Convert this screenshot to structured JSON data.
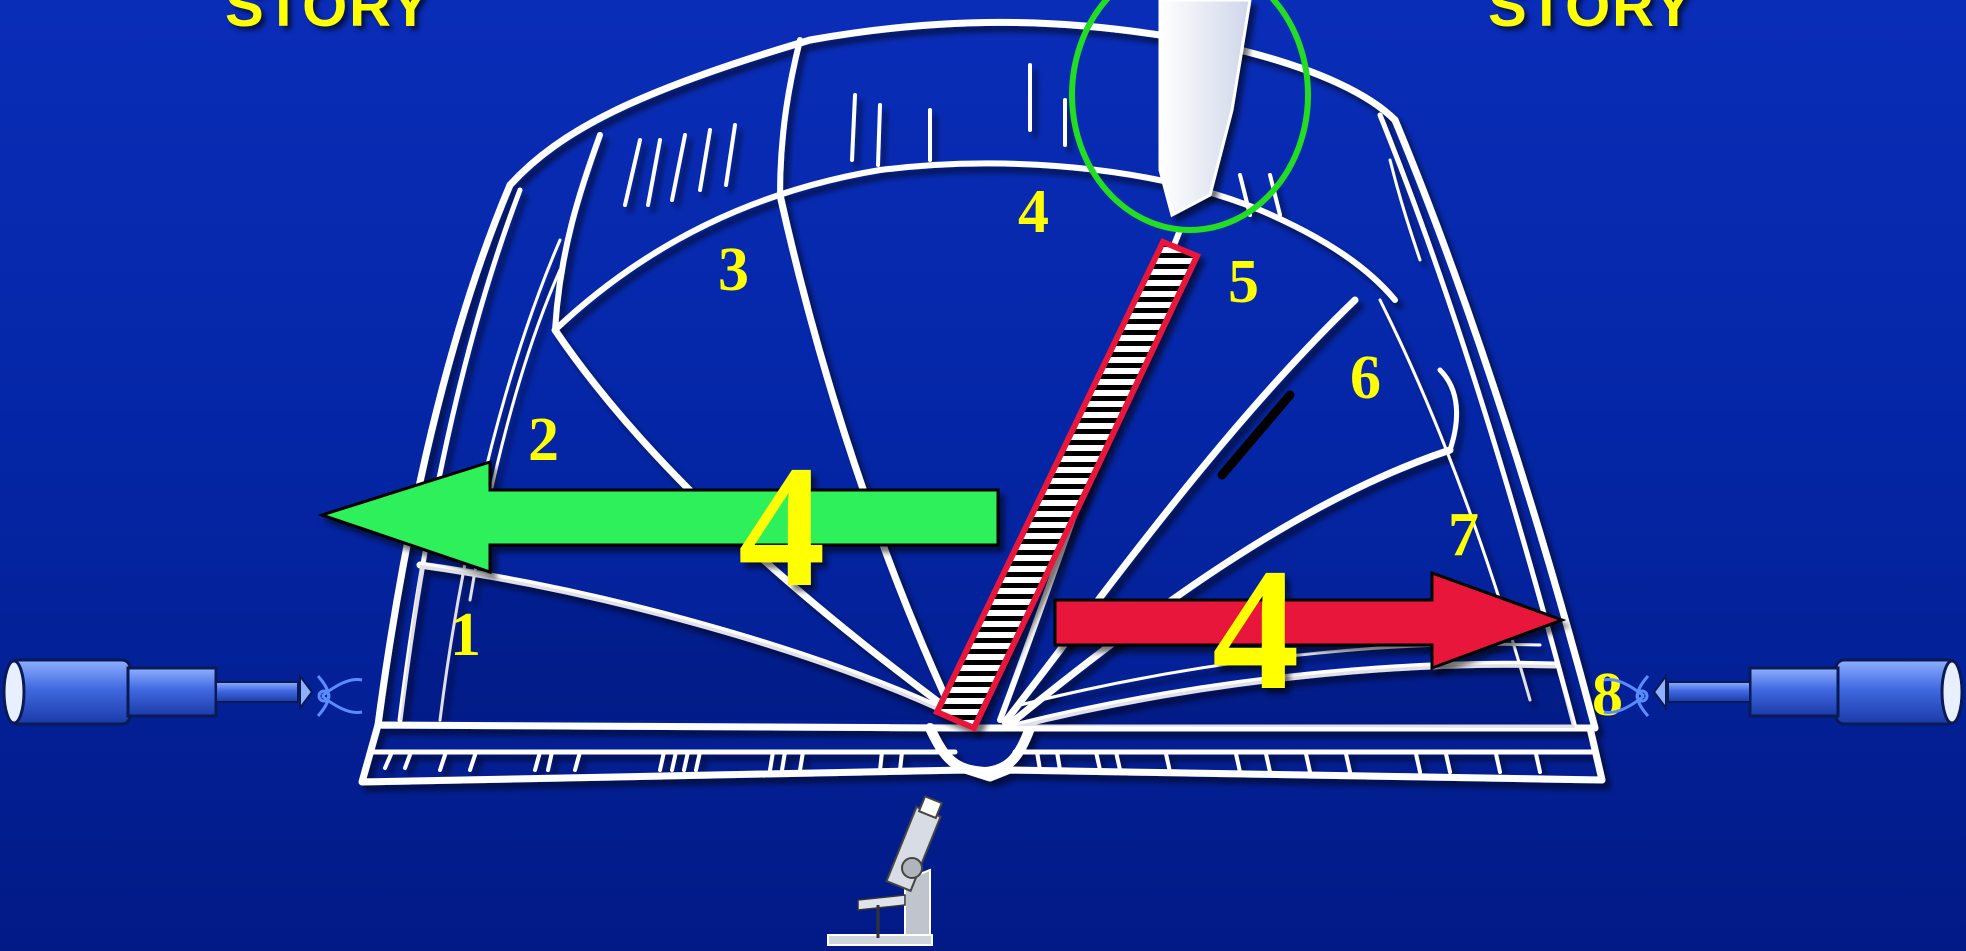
{
  "titles": {
    "left": "STORY",
    "right": "STORY"
  },
  "page_numbers": [
    "1",
    "2",
    "3",
    "4",
    "5",
    "6",
    "7",
    "8"
  ],
  "arrows": {
    "left_label": "4",
    "right_label": "4",
    "left_color": "#2ef05a",
    "right_color": "#e8173a"
  },
  "colors": {
    "background": "#0426a6",
    "label": "#ffff00",
    "book_line": "#ffffff",
    "highlight_ellipse": "#22dd22",
    "ruler_border": "#e8173a"
  },
  "icons": {
    "left": "telescope-icon",
    "right": "telescope-icon",
    "bottom": "microscope-icon"
  }
}
